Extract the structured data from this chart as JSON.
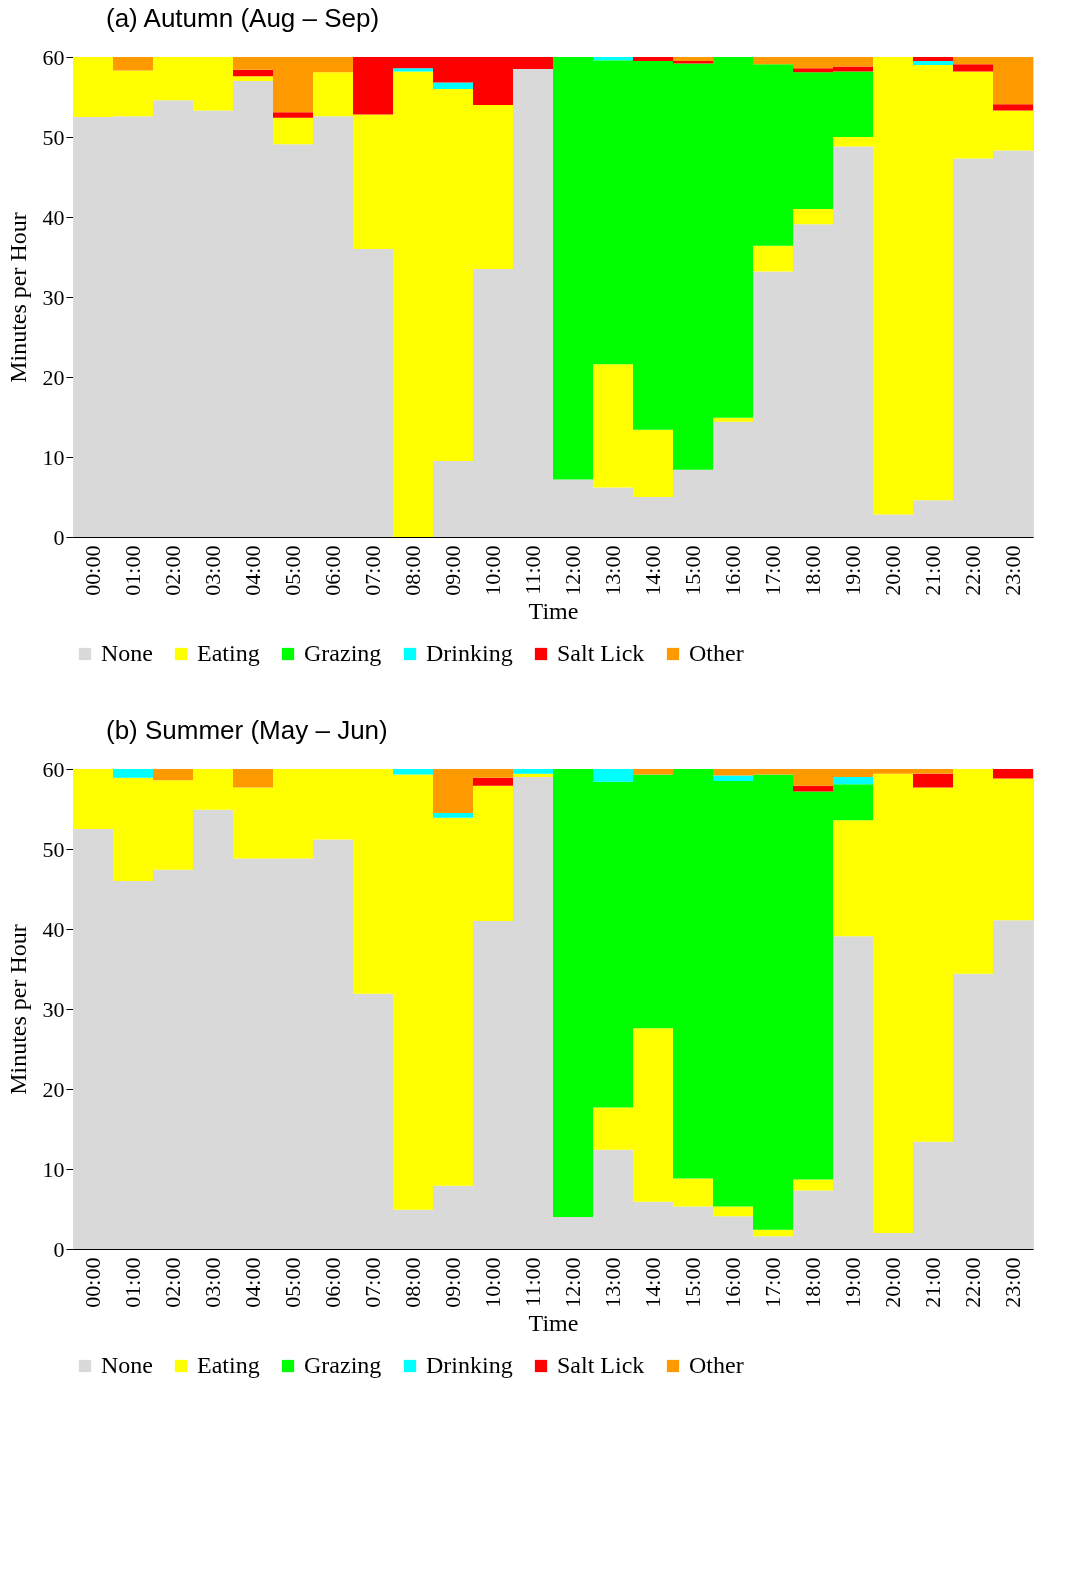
{
  "chart_data": [
    {
      "type": "bar",
      "stacked": true,
      "title": "(a) Autumn (Aug – Sep)",
      "xlabel": "Time",
      "ylabel": "Minutes per Hour",
      "categories": [
        "00:00",
        "01:00",
        "02:00",
        "03:00",
        "04:00",
        "05:00",
        "06:00",
        "07:00",
        "08:00",
        "09:00",
        "10:00",
        "11:00",
        "12:00",
        "13:00",
        "14:00",
        "15:00",
        "16:00",
        "17:00",
        "18:00",
        "19:00",
        "20:00",
        "21:00",
        "22:00",
        "23:00"
      ],
      "series": [
        {
          "name": "None",
          "color": "#d9d9d9",
          "values": [
            52.5,
            52.6,
            54.6,
            53.3,
            57.0,
            49.1,
            52.6,
            36.0,
            0,
            9.5,
            33.5,
            58.5,
            7.2,
            6.2,
            5.0,
            8.4,
            14.4,
            33.2,
            39.1,
            48.8,
            2.8,
            4.6,
            47.3,
            48.3
          ]
        },
        {
          "name": "Eating",
          "color": "#ffff00",
          "values": [
            7.5,
            5.7,
            5.4,
            6.7,
            0.6,
            3.3,
            5.5,
            16.8,
            58.2,
            46.5,
            20.5,
            0,
            0,
            15.4,
            8.4,
            0,
            0.5,
            3.2,
            1.9,
            1.2,
            57.2,
            54.4,
            10.9,
            5.0
          ]
        },
        {
          "name": "Grazing",
          "color": "#00ff00",
          "values": [
            0,
            0,
            0,
            0,
            0,
            0,
            0,
            0,
            0,
            0,
            0,
            0,
            52.8,
            38.0,
            46.1,
            50.8,
            45.1,
            22.7,
            17.1,
            8.2,
            0,
            0,
            0,
            0
          ]
        },
        {
          "name": "Drinking",
          "color": "#00ffff",
          "values": [
            0,
            0,
            0,
            0,
            0,
            0,
            0,
            0,
            0.4,
            0.8,
            0,
            0,
            0,
            0.4,
            0,
            0,
            0,
            0,
            0,
            0,
            0,
            0.5,
            0,
            0
          ]
        },
        {
          "name": "Salt Lick",
          "color": "#ff0000",
          "values": [
            0,
            0,
            0,
            0,
            0.8,
            0.7,
            0,
            7.2,
            1.4,
            3.2,
            6.0,
            1.5,
            0,
            0,
            0.5,
            0.3,
            0,
            0,
            0.5,
            0.6,
            0,
            0.5,
            0.9,
            0.8
          ]
        },
        {
          "name": "Other",
          "color": "#ff9900",
          "values": [
            0,
            1.7,
            0,
            0,
            1.6,
            6.9,
            1.9,
            0,
            0,
            0,
            0,
            0,
            0,
            0,
            0,
            0.5,
            0,
            0.9,
            1.4,
            1.2,
            0,
            0,
            0.9,
            5.9
          ]
        }
      ],
      "ylim": [
        0,
        60
      ],
      "yticks": [
        0,
        10,
        20,
        30,
        40,
        50,
        60
      ],
      "grid": false,
      "legend": "bottom"
    },
    {
      "type": "bar",
      "stacked": true,
      "title": "(b) Summer (May – Jun)",
      "xlabel": "Time",
      "ylabel": "Minutes per Hour",
      "categories": [
        "00:00",
        "01:00",
        "02:00",
        "03:00",
        "04:00",
        "05:00",
        "06:00",
        "07:00",
        "08:00",
        "09:00",
        "10:00",
        "11:00",
        "12:00",
        "13:00",
        "14:00",
        "15:00",
        "16:00",
        "17:00",
        "18:00",
        "19:00",
        "20:00",
        "21:00",
        "22:00",
        "23:00"
      ],
      "series": [
        {
          "name": "None",
          "color": "#d9d9d9",
          "values": [
            52.5,
            46.0,
            47.4,
            54.9,
            48.8,
            48.8,
            51.2,
            31.9,
            4.9,
            7.9,
            41.0,
            59.0,
            4.0,
            12.4,
            5.9,
            5.3,
            4.1,
            1.6,
            7.3,
            39.1,
            2.0,
            13.4,
            34.4,
            41.1
          ]
        },
        {
          "name": "Eating",
          "color": "#ffff00",
          "values": [
            7.5,
            12.9,
            11.2,
            5.1,
            8.9,
            11.2,
            8.8,
            28.1,
            54.4,
            46.0,
            16.9,
            0.4,
            0,
            5.3,
            21.7,
            3.5,
            1.2,
            0.8,
            1.4,
            14.5,
            57.4,
            44.3,
            25.6,
            17.7
          ]
        },
        {
          "name": "Grazing",
          "color": "#00ff00",
          "values": [
            0,
            0,
            0,
            0,
            0,
            0,
            0,
            0,
            0,
            0,
            0,
            0,
            56.0,
            40.7,
            31.7,
            51.2,
            53.2,
            56.9,
            48.5,
            4.5,
            0,
            0,
            0,
            0
          ]
        },
        {
          "name": "Drinking",
          "color": "#00ffff",
          "values": [
            0,
            1.1,
            0,
            0,
            0,
            0,
            0,
            0,
            0.7,
            0.6,
            0,
            0.6,
            0,
            1.6,
            0,
            0,
            0.7,
            0,
            0,
            0.9,
            0,
            0,
            0,
            0
          ]
        },
        {
          "name": "Salt Lick",
          "color": "#ff0000",
          "values": [
            0,
            0,
            0,
            0,
            0,
            0,
            0,
            0,
            0,
            0,
            1.0,
            0,
            0,
            0,
            0,
            0,
            0,
            0,
            0.7,
            0,
            0,
            1.7,
            0,
            1.2
          ]
        },
        {
          "name": "Other",
          "color": "#ff9900",
          "values": [
            0,
            0,
            1.4,
            0,
            2.3,
            0,
            0,
            0,
            0,
            5.5,
            1.1,
            0,
            0,
            0,
            0.7,
            0,
            0.8,
            0.7,
            2.1,
            1.0,
            0.6,
            0.6,
            0,
            0
          ]
        }
      ],
      "ylim": [
        0,
        60
      ],
      "yticks": [
        0,
        10,
        20,
        30,
        40,
        50,
        60
      ],
      "grid": false,
      "legend": "bottom"
    }
  ]
}
